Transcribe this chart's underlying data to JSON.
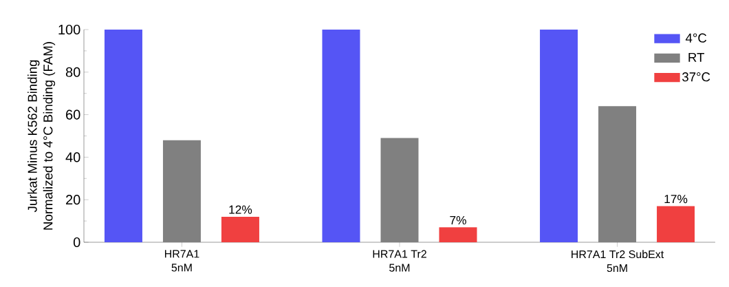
{
  "chart_data": {
    "type": "bar",
    "ylabel": "Jurkat Minus K562 Binding\nNormalized to 4°C Binding (FAM)",
    "categories": [
      "HR7A1\n5nM",
      "HR7A1 Tr2\n5nM",
      "HR7A1 Tr2 SubExt\n5nM"
    ],
    "series": [
      {
        "name": "4°C",
        "color": "#5555f5",
        "values": [
          100,
          100,
          100
        ]
      },
      {
        "name": "RT",
        "color": "#808080",
        "values": [
          48,
          49,
          64
        ]
      },
      {
        "name": "37°C",
        "color": "#f04040",
        "values": [
          12,
          7,
          17
        ],
        "value_labels": [
          "12%",
          "7%",
          "17%"
        ]
      }
    ],
    "ylim": [
      0,
      100
    ],
    "yticks": [
      0,
      20,
      40,
      60,
      80,
      100
    ],
    "legend": "top right"
  }
}
